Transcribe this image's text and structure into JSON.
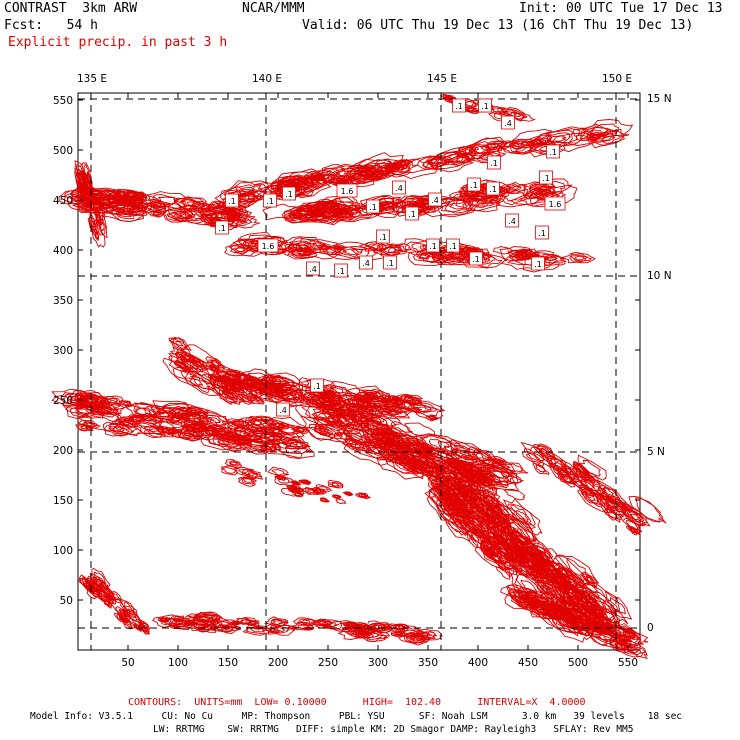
{
  "header": {
    "model": "CONTRAST  3km ARW",
    "center": "NCAR/MMM",
    "init": "Init: 00 UTC Tue 17 Dec 13",
    "fcst": "Fcst:   54 h",
    "valid": "Valid: 06 UTC Thu 19 Dec 13 (16 ChT Thu 19 Dec 13)",
    "field": "Explicit precip. in past 3 h"
  },
  "axes": {
    "lon_labels": [
      "135 E",
      "140 E",
      "145 E",
      "150 E"
    ],
    "lat_labels": [
      "15 N",
      "10 N",
      "5 N",
      "0"
    ],
    "x_ticks": [
      "50",
      "100",
      "150",
      "200",
      "250",
      "300",
      "350",
      "400",
      "450",
      "500",
      "550"
    ],
    "y_ticks": [
      "550",
      "500",
      "450",
      "400",
      "350",
      "300",
      "250",
      "200",
      "150",
      "100",
      "50"
    ]
  },
  "contour_labels": [
    ".1",
    ".1",
    ".4",
    ".1",
    ".1",
    ".1",
    "1.6",
    ".4",
    ".1",
    ".1",
    ".4",
    ".1",
    "1.6",
    ".1",
    ".4",
    ".1",
    ".1",
    ".1",
    ".1",
    "1.6",
    ".1",
    ".1",
    ".1",
    ".4",
    ".1",
    ".4",
    ".1",
    ".1",
    ".1",
    ".1",
    ".1",
    ".4"
  ],
  "footer": {
    "contours": "CONTOURS:  UNITS=mm  LOW= 0.10000      HIGH=  102.40      INTERVAL=X  4.0000",
    "model_info_1": "Model Info: V3.5.1     CU: No Cu     MP: Thompson     PBL: YSU      SF: Noah LSM      3.0 km   39 levels    18 sec",
    "model_info_2": "LW: RRTMG    SW: RRTMG   DIFF: simple KM: 2D Smagor DAMP: Rayleigh3   SFLAY: Rev MM5"
  },
  "colors": {
    "contour": "#e00000",
    "text": "#000000",
    "label_red": "#e00000"
  }
}
